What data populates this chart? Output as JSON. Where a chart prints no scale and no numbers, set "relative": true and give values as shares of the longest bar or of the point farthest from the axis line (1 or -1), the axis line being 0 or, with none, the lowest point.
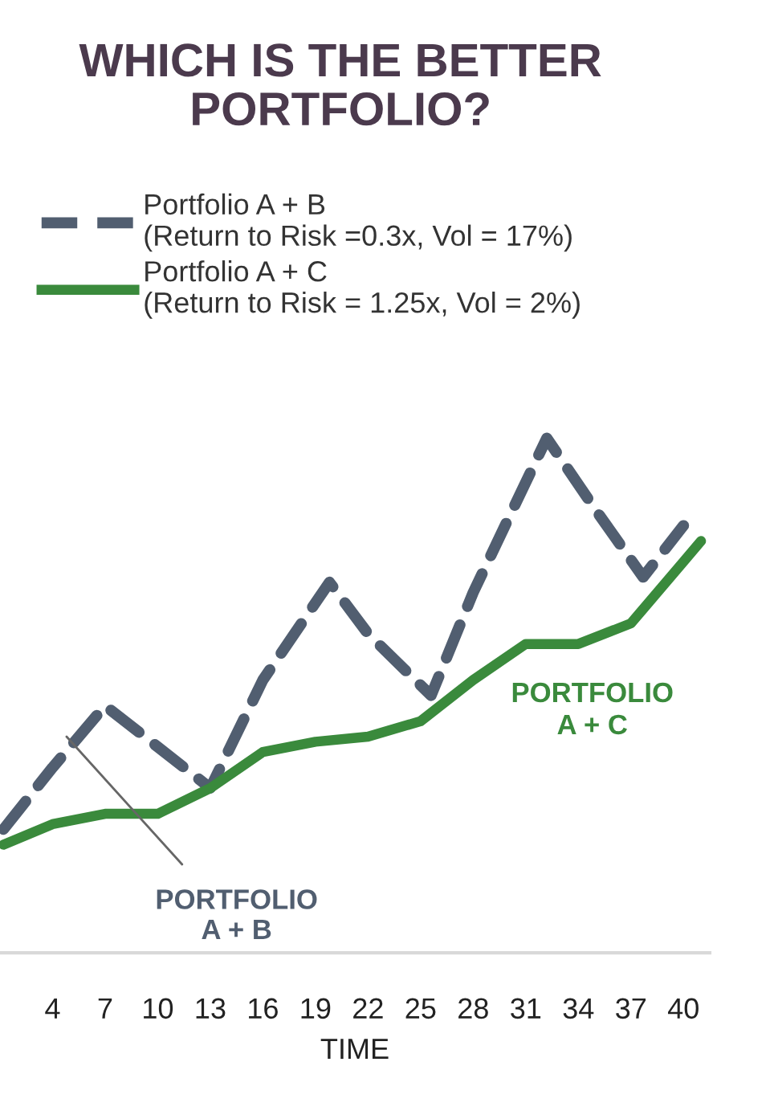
{
  "chart_data": {
    "type": "line",
    "title": "WHICH IS THE BETTER\nPORTFOLIO?",
    "xlabel": "TIME",
    "relative": true,
    "xlim": [
      1,
      41.5
    ],
    "xticks": [
      4,
      7,
      10,
      13,
      16,
      19,
      22,
      25,
      28,
      31,
      34,
      37,
      40
    ],
    "series": [
      {
        "name": "Portfolio A + B\n(Return to Risk =0.3x, Vol = 17%)",
        "color": "#515e70",
        "line_style": "dashed",
        "x": [
          1.2,
          4,
          7,
          10,
          13,
          16,
          19.8,
          22,
          25.6,
          28,
          32.2,
          35,
          37.7,
          40
        ],
        "values": [
          0.24,
          0.36,
          0.48,
          0.4,
          0.32,
          0.53,
          0.72,
          0.62,
          0.5,
          0.7,
          1.0,
          0.86,
          0.73,
          0.83
        ]
      },
      {
        "name": "Portfolio A + C\n(Return to Risk = 1.25x, Vol = 2%)",
        "color": "#3a8a3c",
        "line_style": "solid",
        "x": [
          1.2,
          4,
          7,
          10,
          13,
          16,
          19,
          22,
          25,
          28,
          31,
          34,
          37,
          40,
          41
        ],
        "values": [
          0.21,
          0.25,
          0.27,
          0.27,
          0.32,
          0.39,
          0.41,
          0.42,
          0.45,
          0.53,
          0.6,
          0.6,
          0.64,
          0.76,
          0.8
        ]
      }
    ],
    "annotations": [
      {
        "text": "PORTFOLIO\nA + B",
        "x": 4.8,
        "y": 0.42
      },
      "PORTFOLIO\nA + C"
    ],
    "legend": "top",
    "grid": false
  }
}
